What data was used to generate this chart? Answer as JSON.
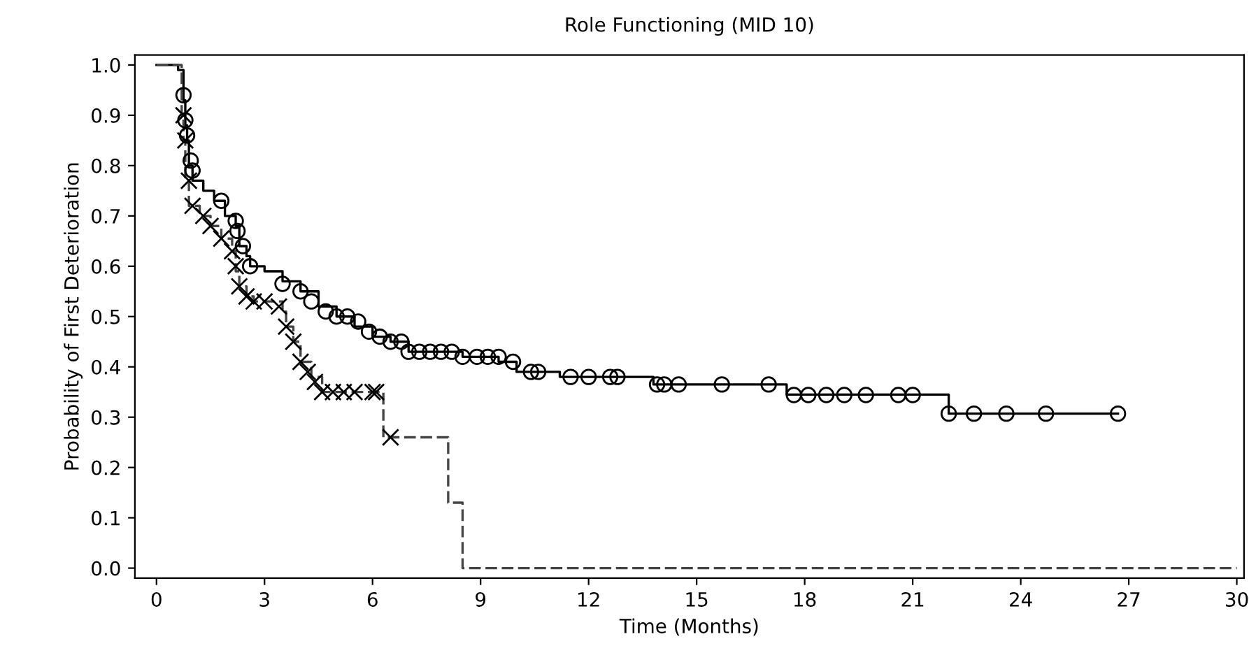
{
  "chart_data": {
    "type": "step",
    "title": "Role Functioning (MID 10)",
    "xlabel": "Time (Months)",
    "ylabel": "Probability of First Deterioration",
    "xlim": [
      -0.6,
      30.2
    ],
    "ylim": [
      -0.02,
      1.02
    ],
    "xticks": [
      0,
      3,
      6,
      9,
      12,
      15,
      18,
      21,
      24,
      27,
      30
    ],
    "yticks": [
      {
        "value": 0,
        "label": "0.0"
      },
      0.1,
      0.2,
      0.3,
      0.4,
      0.5,
      0.6,
      0.7,
      0.8,
      0.9,
      {
        "value": 1,
        "label": "1.0"
      }
    ],
    "grid": false,
    "series": [
      {
        "color": "#000000",
        "line_style": "solid",
        "x": [
          0,
          0.6,
          0.75,
          0.8,
          0.85,
          0.9,
          1.0,
          1.3,
          1.6,
          1.9,
          2.2,
          2.3,
          2.5,
          2.6,
          3.0,
          3.5,
          4.0,
          4.5,
          5.0,
          5.5,
          6.0,
          6.5,
          7.0,
          8.5,
          9.5,
          10.0,
          11.2,
          13.8,
          17.5,
          22.0,
          26.7
        ],
        "values": [
          1.0,
          0.99,
          0.93,
          0.88,
          0.85,
          0.8,
          0.77,
          0.75,
          0.73,
          0.7,
          0.68,
          0.64,
          0.62,
          0.6,
          0.59,
          0.57,
          0.55,
          0.52,
          0.5,
          0.48,
          0.46,
          0.45,
          0.43,
          0.42,
          0.41,
          0.39,
          0.38,
          0.365,
          0.345,
          0.307,
          0.307
        ]
      },
      {
        "color": "#444444",
        "line_style": "dashed",
        "x": [
          0,
          0.7,
          0.75,
          0.8,
          0.9,
          1.2,
          1.5,
          1.8,
          2.1,
          2.2,
          2.3,
          2.5,
          2.7,
          3.5,
          3.6,
          3.8,
          4.0,
          4.3,
          4.6,
          6.3,
          8.1,
          8.5,
          30.0
        ],
        "values": [
          1.0,
          0.9,
          0.85,
          0.77,
          0.72,
          0.7,
          0.68,
          0.655,
          0.63,
          0.59,
          0.56,
          0.54,
          0.53,
          0.51,
          0.48,
          0.45,
          0.41,
          0.38,
          0.35,
          0.26,
          0.13,
          0.0,
          0.0
        ]
      },
      {
        "type": "scatter",
        "color": "#000000",
        "marker": "circle",
        "x": [
          0.75,
          0.8,
          0.85,
          0.95,
          1.0,
          1.8,
          2.2,
          2.25,
          2.4,
          2.6,
          3.5,
          4.0,
          4.3,
          4.7,
          5.0,
          5.3,
          5.6,
          5.9,
          6.2,
          6.5,
          6.8,
          7.0,
          7.3,
          7.6,
          7.9,
          8.2,
          8.5,
          8.9,
          9.2,
          9.5,
          9.9,
          10.4,
          10.6,
          11.5,
          12.0,
          12.6,
          12.8,
          13.9,
          14.1,
          14.5,
          15.7,
          17.0,
          17.7,
          18.1,
          18.6,
          19.1,
          19.7,
          20.6,
          21.0,
          22.0,
          22.7,
          23.6,
          24.7,
          26.7
        ],
        "values": [
          0.94,
          0.89,
          0.86,
          0.81,
          0.79,
          0.73,
          0.69,
          0.67,
          0.64,
          0.6,
          0.565,
          0.55,
          0.53,
          0.51,
          0.5,
          0.5,
          0.49,
          0.47,
          0.46,
          0.45,
          0.45,
          0.43,
          0.43,
          0.43,
          0.43,
          0.43,
          0.42,
          0.42,
          0.42,
          0.42,
          0.41,
          0.39,
          0.39,
          0.38,
          0.38,
          0.38,
          0.38,
          0.365,
          0.365,
          0.365,
          0.365,
          0.365,
          0.344,
          0.344,
          0.344,
          0.344,
          0.344,
          0.344,
          0.344,
          0.307,
          0.307,
          0.307,
          0.307,
          0.307
        ]
      },
      {
        "type": "scatter",
        "color": "#000000",
        "marker": "cross",
        "x": [
          0.75,
          0.8,
          0.9,
          1.0,
          1.3,
          1.5,
          1.8,
          2.1,
          2.2,
          2.3,
          2.5,
          2.7,
          3.0,
          3.4,
          3.6,
          3.8,
          4.0,
          4.2,
          4.4,
          4.6,
          4.9,
          5.2,
          5.5,
          6.0,
          6.1,
          6.5
        ],
        "values": [
          0.9,
          0.85,
          0.77,
          0.72,
          0.7,
          0.68,
          0.655,
          0.63,
          0.6,
          0.56,
          0.54,
          0.53,
          0.53,
          0.52,
          0.48,
          0.45,
          0.41,
          0.39,
          0.37,
          0.35,
          0.35,
          0.35,
          0.35,
          0.35,
          0.35,
          0.26
        ]
      }
    ]
  }
}
